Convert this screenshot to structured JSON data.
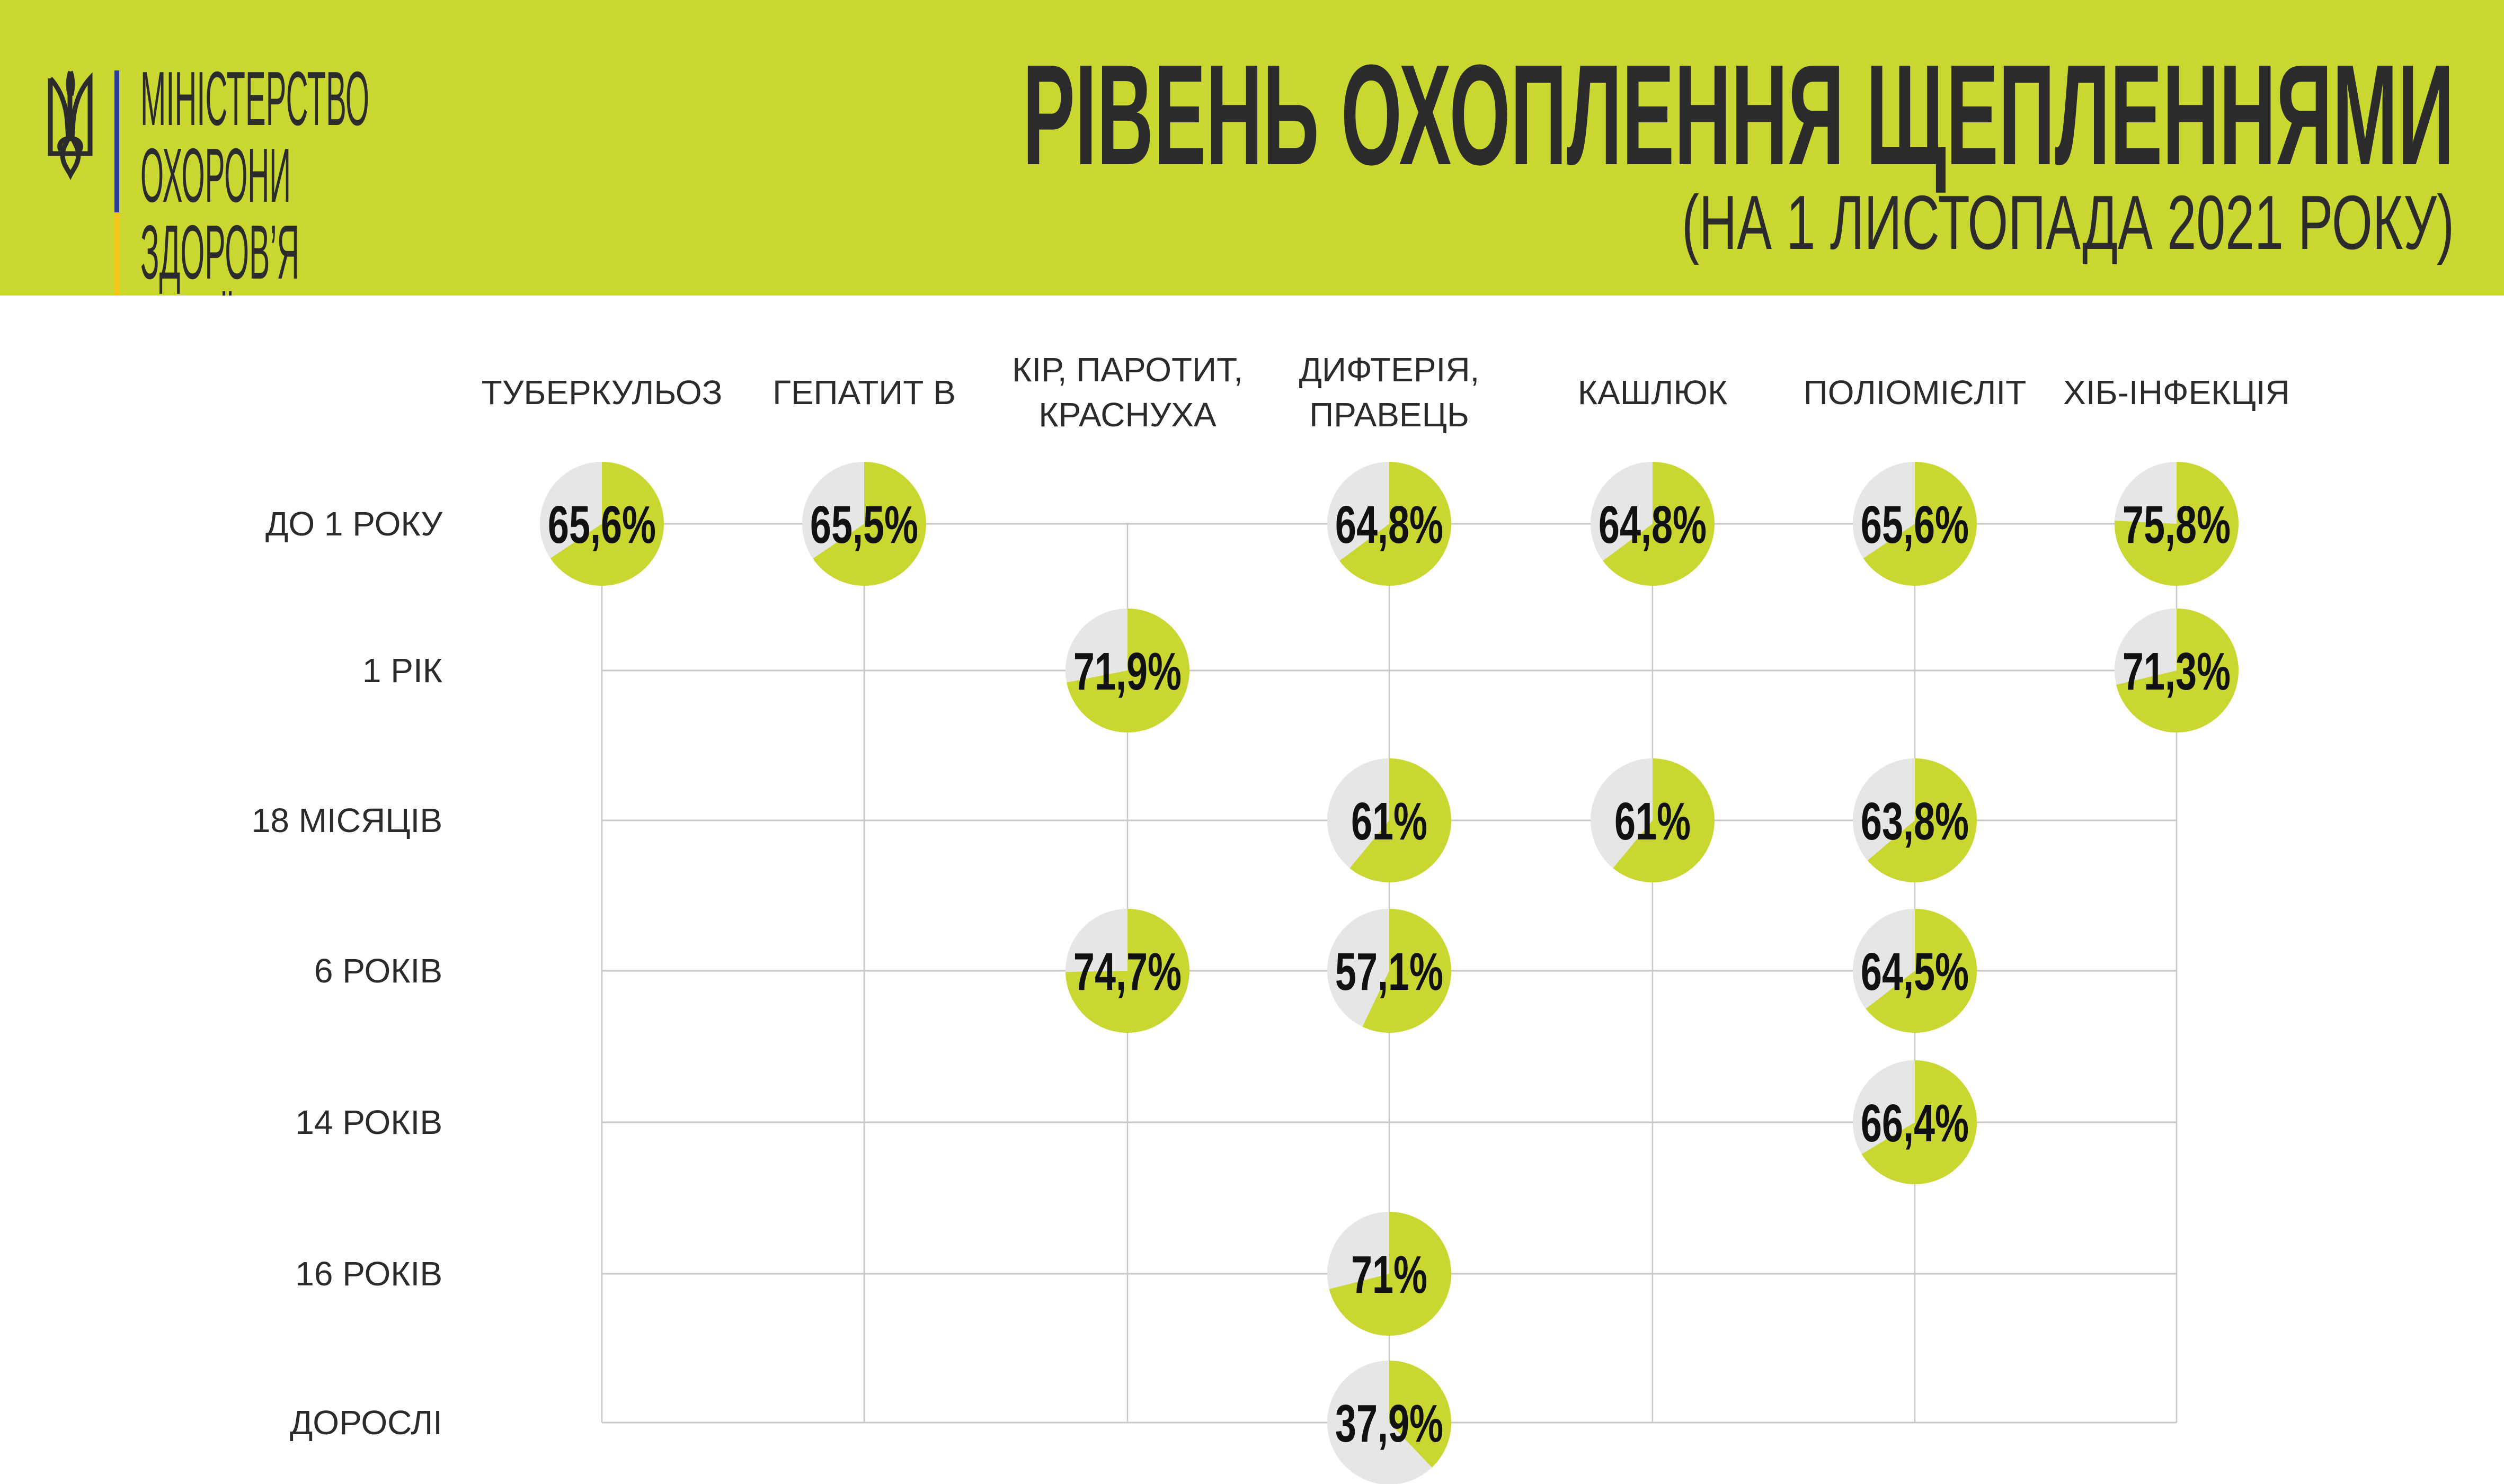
{
  "colors": {
    "accent": "#cad730",
    "remainder": "#e6e6e6",
    "grid": "#c8c8c8",
    "text": "#2b2b2b",
    "flag_blue": "#2c3e9a",
    "flag_yellow": "#f5c518"
  },
  "logo": {
    "icon": "trident-icon",
    "lines": [
      "МІНІСТЕРСТВО",
      "ОХОРОНИ",
      "ЗДОРОВ’Я",
      "УКРАЇНИ"
    ]
  },
  "header": {
    "title": "РІВЕНЬ ОХОПЛЕННЯ ЩЕПЛЕННЯМИ",
    "subtitle": "(НА 1 ЛИСТОПАДА 2021 РОКУ)"
  },
  "chart_data": {
    "type": "pie-grid",
    "title": "РІВЕНЬ ОХОПЛЕННЯ ЩЕПЛЕННЯМИ",
    "subtitle": "(НА 1 ЛИСТОПАДА 2021 РОКУ)",
    "unit": "%",
    "columns": [
      [
        "ТУБЕРКУЛЬОЗ"
      ],
      [
        "ГЕПАТИТ В"
      ],
      [
        "КІР, ПАРОТИТ,",
        "КРАСНУХА"
      ],
      [
        "ДИФТЕРІЯ,",
        "ПРАВЕЦЬ"
      ],
      [
        "КАШЛЮК"
      ],
      [
        "ПОЛІОМІЄЛІТ"
      ],
      [
        "ХІБ-ІНФЕКЦІЯ"
      ]
    ],
    "rows": [
      "ДО 1 РОКУ",
      "1 РІК",
      "18 МІСЯЦІВ",
      "6 РОКІВ",
      "14 РОКІВ",
      "16 РОКІВ",
      "ДОРОСЛІ"
    ],
    "cells": [
      {
        "row": 0,
        "col": 0,
        "value": 65.6,
        "label": "65,6%"
      },
      {
        "row": 0,
        "col": 1,
        "value": 65.5,
        "label": "65,5%"
      },
      {
        "row": 0,
        "col": 3,
        "value": 64.8,
        "label": "64,8%"
      },
      {
        "row": 0,
        "col": 4,
        "value": 64.8,
        "label": "64,8%"
      },
      {
        "row": 0,
        "col": 5,
        "value": 65.6,
        "label": "65,6%"
      },
      {
        "row": 0,
        "col": 6,
        "value": 75.8,
        "label": "75,8%"
      },
      {
        "row": 1,
        "col": 2,
        "value": 71.9,
        "label": "71,9%"
      },
      {
        "row": 1,
        "col": 6,
        "value": 71.3,
        "label": "71,3%"
      },
      {
        "row": 2,
        "col": 3,
        "value": 61,
        "label": "61%"
      },
      {
        "row": 2,
        "col": 4,
        "value": 61,
        "label": "61%"
      },
      {
        "row": 2,
        "col": 5,
        "value": 63.8,
        "label": "63,8%"
      },
      {
        "row": 3,
        "col": 2,
        "value": 74.7,
        "label": "74,7%"
      },
      {
        "row": 3,
        "col": 3,
        "value": 57.1,
        "label": "57,1%"
      },
      {
        "row": 3,
        "col": 5,
        "value": 64.5,
        "label": "64,5%"
      },
      {
        "row": 4,
        "col": 5,
        "value": 66.4,
        "label": "66,4%"
      },
      {
        "row": 5,
        "col": 3,
        "value": 71,
        "label": "71%"
      },
      {
        "row": 6,
        "col": 3,
        "value": 37.9,
        "label": "37,9%"
      }
    ]
  }
}
